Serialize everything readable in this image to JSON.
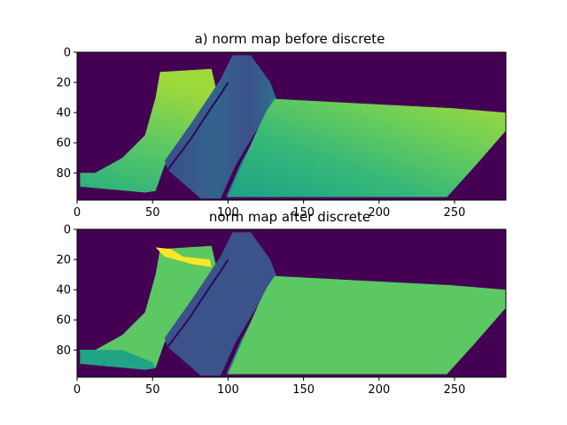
{
  "chart_data": [
    {
      "type": "heatmap",
      "title": "a) norm map before discrete",
      "xlabel": "",
      "ylabel": "",
      "xlim": [
        0,
        284
      ],
      "ylim": [
        98,
        0
      ],
      "xticks": [
        0,
        50,
        100,
        150,
        200,
        250
      ],
      "yticks": [
        0,
        20,
        40,
        60,
        80
      ],
      "colormap": "viridis",
      "background_color": "#440154",
      "regions": [
        {
          "name": "left-slab",
          "polygon": [
            [
              2,
              80
            ],
            [
              12,
              80
            ],
            [
              30,
              70
            ],
            [
              45,
              55
            ],
            [
              52,
              30
            ],
            [
              55,
              13
            ],
            [
              89,
              11
            ],
            [
              93,
              28
            ],
            [
              87,
              35
            ],
            [
              72,
              55
            ],
            [
              58,
              75
            ],
            [
              52,
              92
            ],
            [
              45,
              93
            ],
            [
              2,
              89
            ]
          ],
          "color_stops": [
            "#29AF7F",
            "#56C667",
            "#9ED93A"
          ],
          "gradient": "top-light"
        },
        {
          "name": "blade",
          "polygon": [
            [
              58,
              72
            ],
            [
              77,
              45
            ],
            [
              95,
              18
            ],
            [
              98,
              12
            ],
            [
              103,
              2
            ],
            [
              115,
              2
            ],
            [
              128,
              20
            ],
            [
              132,
              31
            ],
            [
              121,
              48
            ],
            [
              105,
              75
            ],
            [
              95,
              97
            ],
            [
              82,
              97
            ],
            [
              60,
              78
            ]
          ],
          "color_stops": [
            "#33638D",
            "#3D4D8A",
            "#2D708E"
          ],
          "gradient": "edge-dark"
        },
        {
          "name": "right-slab",
          "polygon": [
            [
              126,
              38
            ],
            [
              131,
              31
            ],
            [
              248,
              37
            ],
            [
              284,
              40
            ],
            [
              284,
              52
            ],
            [
              264,
              75
            ],
            [
              245,
              96
            ],
            [
              100,
              96
            ],
            [
              109,
              75
            ],
            [
              120,
              50
            ]
          ],
          "color_stops": [
            "#1FA187",
            "#35B779",
            "#6ECE58",
            "#A0DA39"
          ],
          "gradient": "top-right-light"
        }
      ]
    },
    {
      "type": "heatmap",
      "title": "norm map after discrete",
      "xlabel": "",
      "ylabel": "",
      "xlim": [
        0,
        284
      ],
      "ylim": [
        98,
        0
      ],
      "xticks": [
        0,
        50,
        100,
        150,
        200,
        250
      ],
      "yticks": [
        0,
        20,
        40,
        60,
        80
      ],
      "colormap": "viridis",
      "background_color": "#440154",
      "regions": [
        {
          "name": "left-slab",
          "polygon": [
            [
              2,
              80
            ],
            [
              12,
              80
            ],
            [
              30,
              70
            ],
            [
              45,
              55
            ],
            [
              52,
              30
            ],
            [
              55,
              13
            ],
            [
              89,
              11
            ],
            [
              93,
              28
            ],
            [
              87,
              35
            ],
            [
              72,
              55
            ],
            [
              58,
              75
            ],
            [
              52,
              92
            ],
            [
              45,
              93
            ],
            [
              2,
              89
            ]
          ],
          "color_stops": [
            "#5CC863"
          ],
          "teal_band": [
            [
              2,
              80
            ],
            [
              30,
              80
            ],
            [
              50,
              88
            ],
            [
              52,
              92
            ],
            [
              45,
              93
            ],
            [
              2,
              89
            ]
          ],
          "teal_color": "#20A486",
          "yellow_patches": [
            [
              [
                52,
                12
              ],
              [
                62,
                13
              ],
              [
                70,
                18
              ],
              [
                88,
                20
              ],
              [
                89,
                25
              ],
              [
                76,
                23
              ],
              [
                58,
                18
              ]
            ]
          ],
          "yellow_color": "#FDE725"
        },
        {
          "name": "blade",
          "polygon": [
            [
              58,
              72
            ],
            [
              77,
              45
            ],
            [
              95,
              18
            ],
            [
              98,
              12
            ],
            [
              103,
              2
            ],
            [
              115,
              2
            ],
            [
              128,
              20
            ],
            [
              132,
              31
            ],
            [
              121,
              48
            ],
            [
              105,
              75
            ],
            [
              95,
              97
            ],
            [
              82,
              97
            ],
            [
              60,
              78
            ]
          ],
          "color_stops": [
            "#3B528B"
          ],
          "edge_color": "#2C728E"
        },
        {
          "name": "right-slab",
          "polygon": [
            [
              126,
              38
            ],
            [
              131,
              31
            ],
            [
              248,
              37
            ],
            [
              284,
              40
            ],
            [
              284,
              52
            ],
            [
              264,
              75
            ],
            [
              245,
              96
            ],
            [
              100,
              96
            ],
            [
              109,
              75
            ],
            [
              120,
              50
            ]
          ],
          "color_stops": [
            "#5CC863"
          ]
        }
      ]
    }
  ]
}
